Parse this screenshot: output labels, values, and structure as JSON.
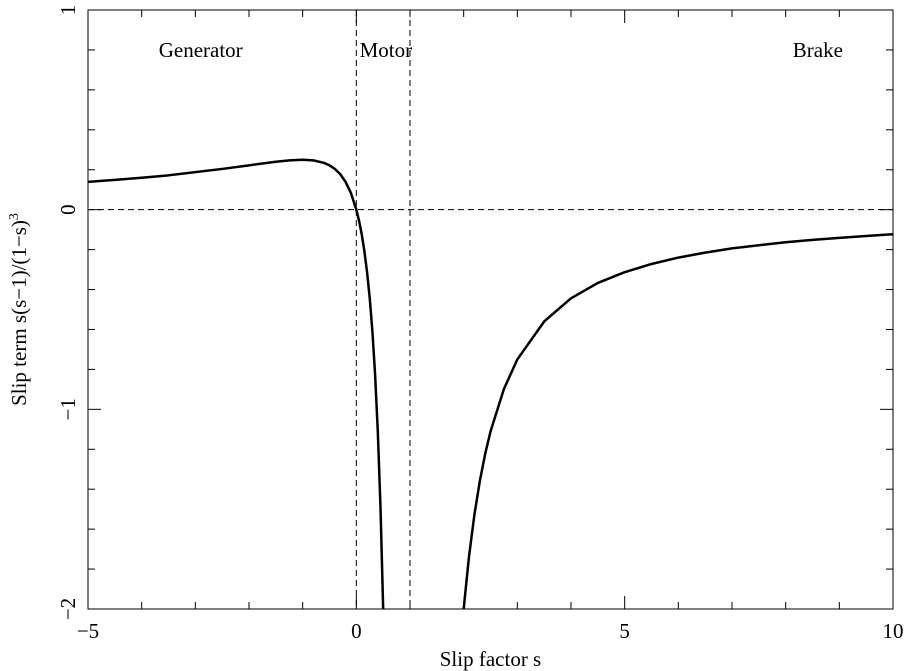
{
  "chart_data": {
    "type": "line",
    "xlabel": "Slip factor s",
    "ylabel": "Slip term s(s−1)/(1−s)",
    "ylabel_superscript": "3",
    "xlim": [
      -5,
      10
    ],
    "ylim": [
      -2,
      1
    ],
    "x_ticks": [
      {
        "value": -5,
        "label": "−5"
      },
      {
        "value": 0,
        "label": "0"
      },
      {
        "value": 5,
        "label": "5"
      },
      {
        "value": 10,
        "label": "10"
      }
    ],
    "y_ticks": [
      {
        "value": -2,
        "label": "−2"
      },
      {
        "value": -1,
        "label": "−1"
      },
      {
        "value": 0,
        "label": "0"
      },
      {
        "value": 1,
        "label": "1"
      }
    ],
    "x_minor_step": 1,
    "y_minor_step": 0.2,
    "grid": false,
    "line_color": "#000000",
    "series": [
      {
        "x": [
          -5,
          -4.5,
          -4,
          -3.5,
          -3,
          -2.5,
          -2,
          -1.5,
          -1.25,
          -1,
          -0.8,
          -0.6,
          -0.5,
          -0.4,
          -0.3,
          -0.2,
          -0.1,
          0,
          0.05,
          0.1,
          0.15,
          0.2,
          0.25,
          0.3,
          0.35,
          0.4,
          0.45,
          0.5,
          0.52
        ],
        "y": [
          0.139,
          0.149,
          0.16,
          0.172,
          0.188,
          0.204,
          0.222,
          0.24,
          0.247,
          0.25,
          0.247,
          0.234,
          0.222,
          0.204,
          0.178,
          0.139,
          0.083,
          0.0,
          -0.055,
          -0.123,
          -0.208,
          -0.313,
          -0.444,
          -0.612,
          -0.828,
          -1.111,
          -1.488,
          -2.0,
          -2.25
        ]
      },
      {
        "x": [
          1.98,
          2,
          2.1,
          2.2,
          2.3,
          2.4,
          2.5,
          2.75,
          3,
          3.5,
          4,
          4.5,
          5,
          5.5,
          6,
          6.5,
          7,
          7.5,
          8,
          8.5,
          9,
          9.5,
          10
        ],
        "y": [
          -2.06,
          -2.0,
          -1.736,
          -1.528,
          -1.361,
          -1.224,
          -1.111,
          -0.898,
          -0.75,
          -0.56,
          -0.444,
          -0.367,
          -0.313,
          -0.272,
          -0.24,
          -0.215,
          -0.194,
          -0.178,
          -0.163,
          -0.151,
          -0.141,
          -0.132,
          -0.123
        ]
      }
    ],
    "reference_lines": [
      {
        "orientation": "horizontal",
        "value": 0,
        "style": "dashed"
      },
      {
        "orientation": "vertical",
        "value": 0,
        "style": "dashed"
      },
      {
        "orientation": "vertical",
        "value": 1,
        "style": "dashed"
      }
    ],
    "annotations": [
      {
        "text": "Generator",
        "x": -2.9,
        "y": 0.8
      },
      {
        "text": "Motor",
        "x": 0.55,
        "y": 0.8
      },
      {
        "text": "Brake",
        "x": 8.6,
        "y": 0.8
      }
    ]
  }
}
